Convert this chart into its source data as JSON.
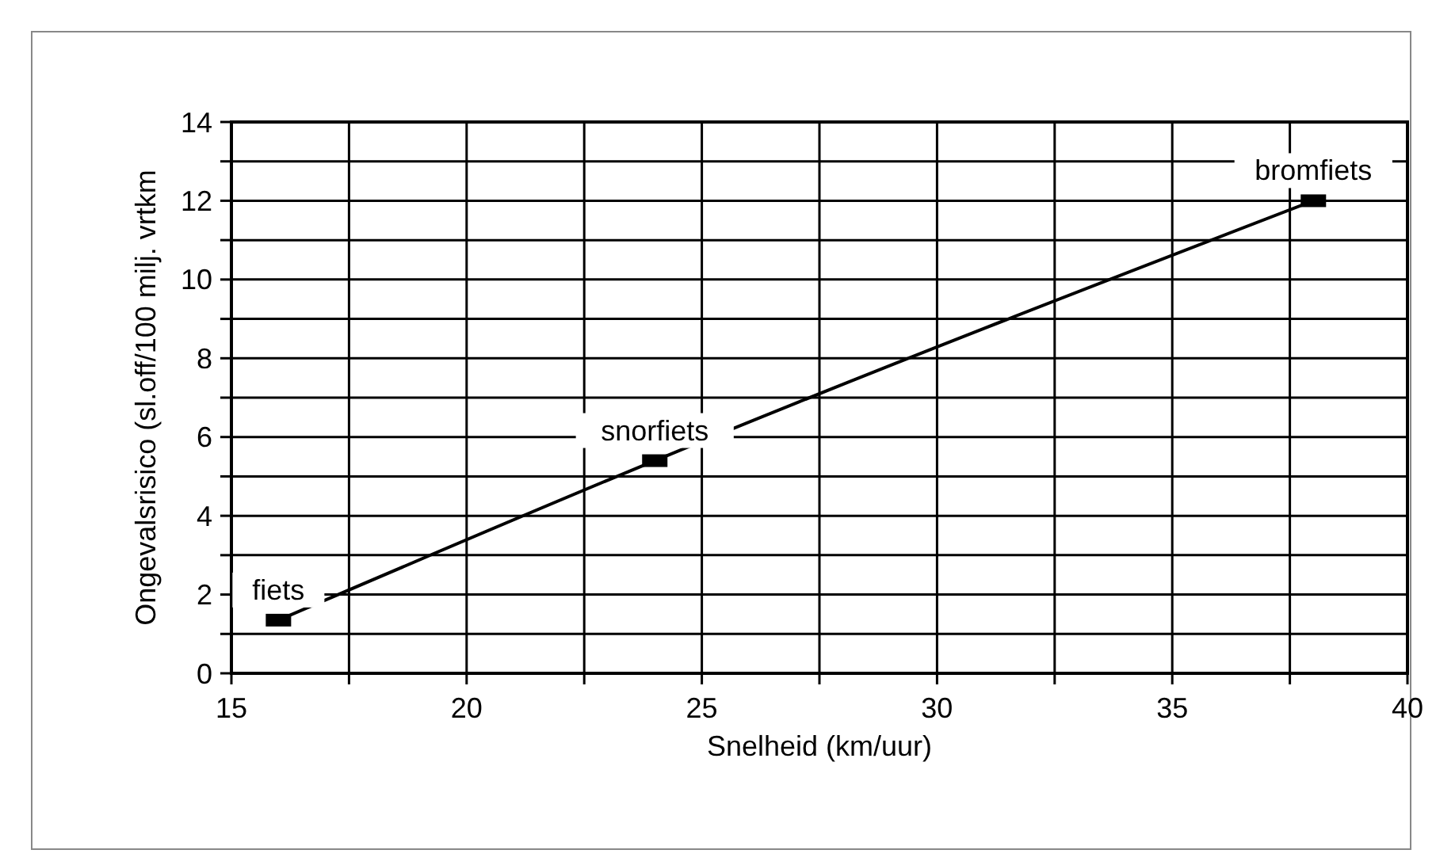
{
  "chart_data": {
    "type": "line",
    "xlabel": "Snelheid (km/uur)",
    "ylabel": "Ongevalsrisico (sl.off/100 milj. vrtkm",
    "x": [
      16,
      24,
      38
    ],
    "series": [
      {
        "color": "#000000",
        "values": [
          1.35,
          5.4,
          12
        ]
      }
    ],
    "xlim": [
      15,
      40
    ],
    "xticks": [
      15,
      {
        "value": 17.5,
        "label": null
      },
      20,
      {
        "value": 22.5,
        "label": null
      },
      25,
      {
        "value": 27.5,
        "label": null
      },
      30,
      {
        "value": 32.5,
        "label": null
      },
      35,
      {
        "value": 37.5,
        "label": null
      },
      40
    ],
    "ylim": [
      0,
      14
    ],
    "yticks": [
      0,
      {
        "value": 1,
        "label": null
      },
      2,
      {
        "value": 3,
        "label": null
      },
      4,
      {
        "value": 5,
        "label": null
      },
      6,
      {
        "value": 7,
        "label": null
      },
      8,
      {
        "value": 9,
        "label": null
      },
      10,
      {
        "value": 11,
        "label": null
      },
      12,
      {
        "value": 13,
        "label": null
      },
      14
    ],
    "grid": true,
    "marker": "square",
    "line_style": "solid",
    "annotations": [
      {
        "text": "fiets",
        "x": 16,
        "y": 1.35
      },
      {
        "text": "snorfiets",
        "x": 24,
        "y": 5.4
      },
      {
        "text": "bromfiets",
        "x": 38,
        "y": 12
      }
    ]
  }
}
